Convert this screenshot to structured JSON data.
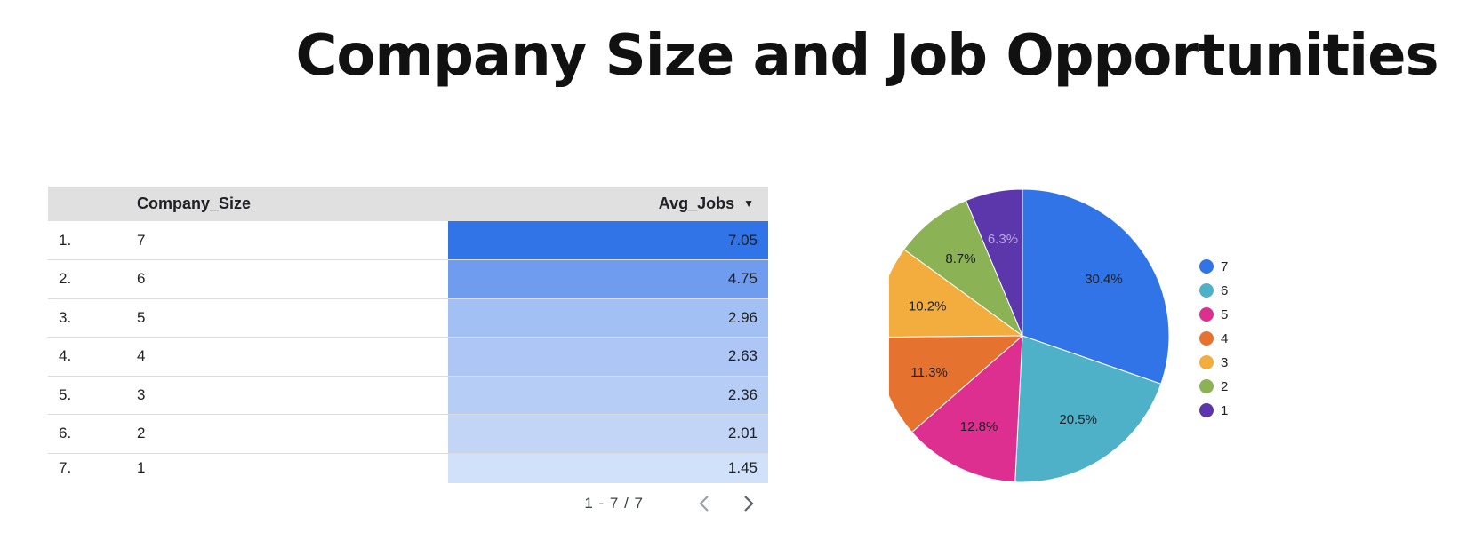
{
  "title": "Company Size and Job Opportunities",
  "table": {
    "headers": {
      "index": "",
      "size": "Company_Size",
      "jobs": "Avg_Jobs"
    },
    "rows": [
      {
        "index": "1.",
        "size": "7",
        "jobs": "7.05"
      },
      {
        "index": "2.",
        "size": "6",
        "jobs": "4.75"
      },
      {
        "index": "3.",
        "size": "5",
        "jobs": "2.96"
      },
      {
        "index": "4.",
        "size": "4",
        "jobs": "2.63"
      },
      {
        "index": "5.",
        "size": "3",
        "jobs": "2.36"
      },
      {
        "index": "6.",
        "size": "2",
        "jobs": "2.01"
      },
      {
        "index": "7.",
        "size": "1",
        "jobs": "1.45"
      }
    ],
    "heat_colors": [
      "#3174e8",
      "#6f9cef",
      "#a3c0f5",
      "#adc6f5",
      "#b6cdf6",
      "#c2d5f7",
      "#d2e1fa"
    ],
    "pagination": "1 - 7 / 7"
  },
  "chart_data": {
    "type": "pie",
    "start_angle_deg": 0,
    "direction": "clockwise",
    "legend_position": "right",
    "slices": [
      {
        "label": "7",
        "value": 30.4,
        "display": "30.4%",
        "color": "#3174e8",
        "label_color": "#202124"
      },
      {
        "label": "6",
        "value": 20.5,
        "display": "20.5%",
        "color": "#4fb1c8",
        "label_color": "#202124"
      },
      {
        "label": "5",
        "value": 12.8,
        "display": "12.8%",
        "color": "#dd2f8f",
        "label_color": "#202124"
      },
      {
        "label": "4",
        "value": 11.3,
        "display": "11.3%",
        "color": "#e5722e",
        "label_color": "#202124"
      },
      {
        "label": "3",
        "value": 10.2,
        "display": "10.2%",
        "color": "#f3ac3e",
        "label_color": "#202124"
      },
      {
        "label": "2",
        "value": 8.7,
        "display": "8.7%",
        "color": "#8bb356",
        "label_color": "#202124"
      },
      {
        "label": "1",
        "value": 6.3,
        "display": "6.3%",
        "color": "#5c36ab",
        "label_color": "#b9a8e0"
      }
    ]
  }
}
